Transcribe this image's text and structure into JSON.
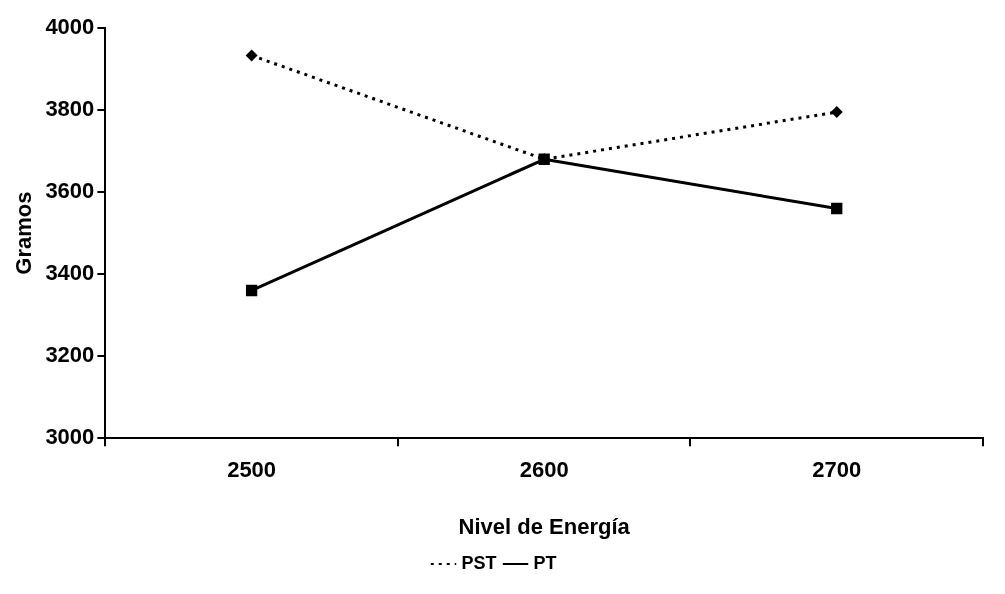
{
  "chart_data": {
    "type": "line",
    "xlabel": "Nivel de Energía",
    "ylabel": "Gramos",
    "categories": [
      "2500",
      "2600",
      "2700"
    ],
    "series": [
      {
        "name": "PST",
        "color": "#000000",
        "values": [
          3933,
          3680,
          3795
        ],
        "marker": "diamond",
        "line_style": "dotted"
      },
      {
        "name": "PT",
        "color": "#000000",
        "values": [
          3360,
          3680,
          3560
        ],
        "marker": "square",
        "line_style": "solid"
      }
    ],
    "ylim": [
      3000,
      4000
    ],
    "yticks": [
      3000,
      3200,
      3400,
      3600,
      3800,
      4000
    ],
    "grid": false,
    "legend": "bottom"
  }
}
